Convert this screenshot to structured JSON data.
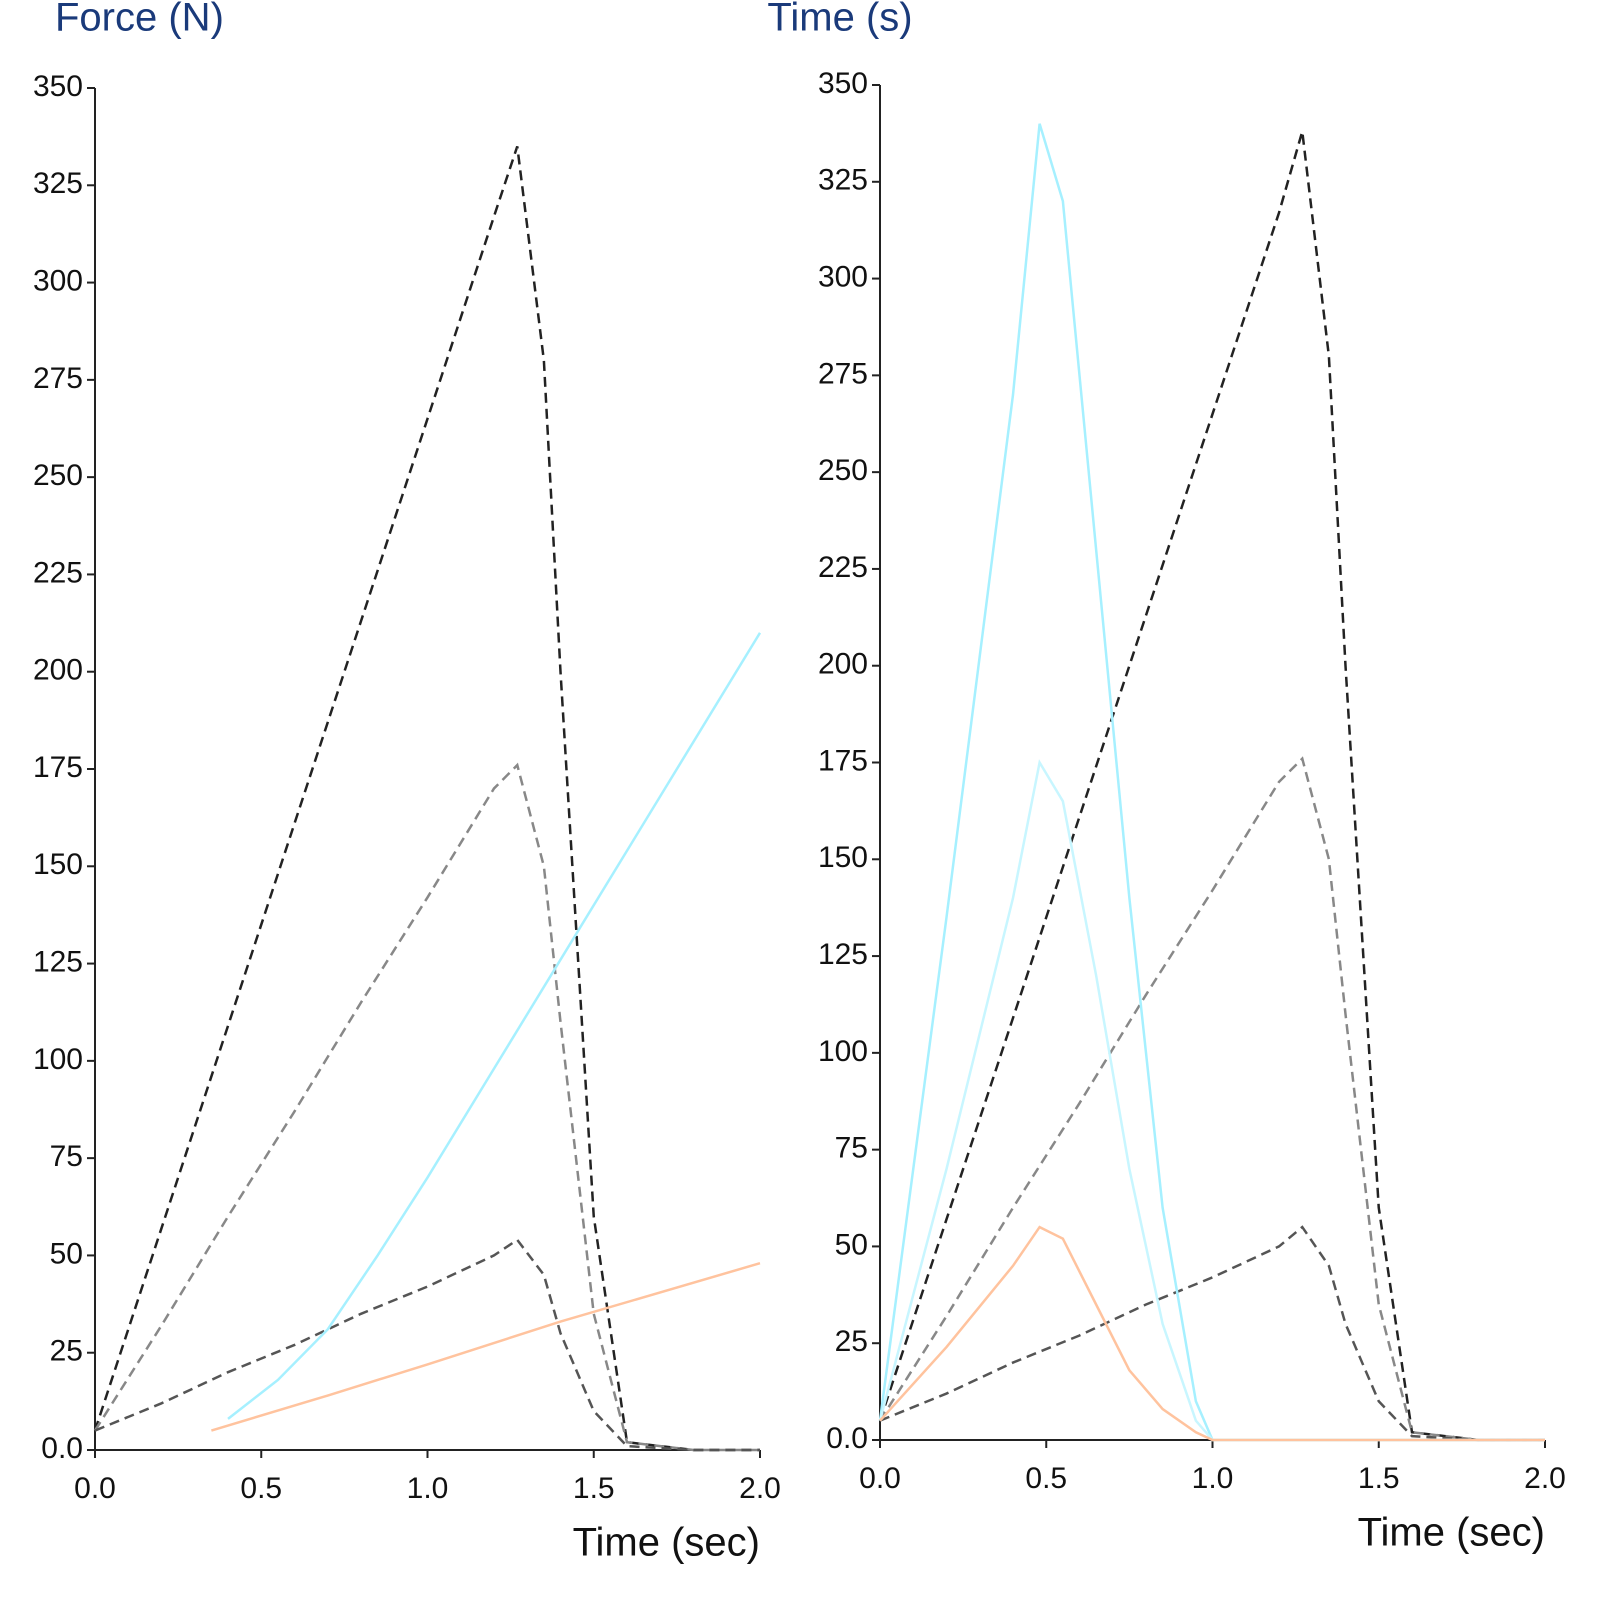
{
  "chart_data": [
    {
      "type": "line",
      "ylabel": "Force (N)",
      "xlabel": "Time (sec)",
      "xlim": [
        0,
        2
      ],
      "xticks": [
        {
          "value": 0,
          "label": "0.0"
        },
        0.5,
        {
          "value": 1,
          "label": "1.0"
        },
        1.5,
        {
          "value": 2,
          "label": "2.0"
        }
      ],
      "ylim": [
        0,
        350
      ],
      "yticks": [
        {
          "value": 0,
          "label": "0.0"
        },
        25,
        50,
        75,
        100,
        125,
        150,
        175,
        200,
        225,
        250,
        275,
        300,
        325,
        350
      ],
      "series": [
        {
          "color": "#222222",
          "dash": true,
          "x": [
            0,
            0.2,
            0.4,
            0.6,
            0.8,
            1.0,
            1.2,
            1.27,
            1.35,
            1.4,
            1.5,
            1.6,
            1.8,
            2.0
          ],
          "values": [
            5,
            57,
            109,
            161,
            213,
            265,
            317,
            335,
            280,
            200,
            60,
            2,
            0,
            0
          ]
        },
        {
          "color": "#888888",
          "dash": true,
          "x": [
            0,
            0.2,
            0.4,
            0.6,
            0.8,
            1.0,
            1.2,
            1.27,
            1.35,
            1.4,
            1.5,
            1.6,
            1.8,
            2.0
          ],
          "values": [
            5,
            32,
            60,
            87,
            115,
            142,
            170,
            176,
            150,
            110,
            35,
            2,
            0,
            0
          ]
        },
        {
          "color": "#555555",
          "dash": true,
          "x": [
            0,
            0.2,
            0.4,
            0.6,
            0.8,
            1.0,
            1.2,
            1.27,
            1.35,
            1.4,
            1.5,
            1.6,
            1.8,
            2.0
          ],
          "values": [
            5,
            12,
            20,
            27,
            35,
            42,
            50,
            54,
            45,
            30,
            10,
            1,
            0,
            0
          ]
        },
        {
          "color": "#a6f0ff",
          "dash": false,
          "x": [
            0.4,
            0.55,
            0.7,
            0.85,
            1.0,
            1.2,
            1.4,
            1.7,
            2.0
          ],
          "values": [
            8,
            18,
            31,
            50,
            70,
            98,
            126,
            168,
            210
          ]
        },
        {
          "color": "#ffc39e",
          "dash": false,
          "x": [
            0.35,
            0.7,
            1.0,
            1.4,
            2.0
          ],
          "values": [
            5,
            14,
            22,
            33,
            48
          ]
        }
      ]
    },
    {
      "type": "line",
      "ylabel": "Time (s)",
      "xlabel": "Time (sec)",
      "xlim": [
        0,
        2
      ],
      "xticks": [
        {
          "value": 0,
          "label": "0.0"
        },
        0.5,
        {
          "value": 1,
          "label": "1.0"
        },
        1.5,
        {
          "value": 2,
          "label": "2.0"
        }
      ],
      "ylim": [
        0,
        350
      ],
      "yticks": [
        {
          "value": 0,
          "label": "0.0"
        },
        25,
        50,
        75,
        100,
        125,
        150,
        175,
        200,
        225,
        250,
        275,
        300,
        325,
        350
      ],
      "series": [
        {
          "color": "#222222",
          "dash": true,
          "x": [
            0,
            0.2,
            0.4,
            0.6,
            0.8,
            1.0,
            1.2,
            1.27,
            1.35,
            1.4,
            1.5,
            1.6,
            1.8,
            2.0
          ],
          "values": [
            5,
            57,
            109,
            161,
            213,
            265,
            317,
            338,
            280,
            200,
            60,
            2,
            0,
            0
          ]
        },
        {
          "color": "#888888",
          "dash": true,
          "x": [
            0,
            0.2,
            0.4,
            0.6,
            0.8,
            1.0,
            1.2,
            1.27,
            1.35,
            1.4,
            1.5,
            1.6,
            1.8,
            2.0
          ],
          "values": [
            5,
            32,
            60,
            87,
            115,
            142,
            170,
            176,
            150,
            110,
            35,
            2,
            0,
            0
          ]
        },
        {
          "color": "#555555",
          "dash": true,
          "x": [
            0,
            0.2,
            0.4,
            0.6,
            0.8,
            1.0,
            1.2,
            1.27,
            1.35,
            1.4,
            1.5,
            1.6,
            1.8,
            2.0
          ],
          "values": [
            5,
            12,
            20,
            27,
            35,
            42,
            50,
            55,
            45,
            30,
            10,
            1,
            0,
            0
          ]
        },
        {
          "color": "#a6f0ff",
          "dash": false,
          "x": [
            0,
            0.2,
            0.4,
            0.48,
            0.55,
            0.65,
            0.75,
            0.85,
            0.95,
            1.0,
            1.2,
            2.0
          ],
          "values": [
            5,
            135,
            270,
            340,
            320,
            230,
            140,
            60,
            10,
            0,
            0,
            0
          ]
        },
        {
          "color": "#c8f6ff",
          "dash": false,
          "x": [
            0,
            0.2,
            0.4,
            0.48,
            0.55,
            0.65,
            0.75,
            0.85,
            0.95,
            1.0,
            1.2,
            2.0
          ],
          "values": [
            5,
            70,
            140,
            175,
            165,
            120,
            70,
            30,
            5,
            0,
            0,
            0
          ]
        },
        {
          "color": "#ffc39e",
          "dash": false,
          "x": [
            0,
            0.2,
            0.4,
            0.48,
            0.55,
            0.65,
            0.75,
            0.85,
            0.95,
            1.0,
            1.2,
            2.0
          ],
          "values": [
            5,
            24,
            45,
            55,
            52,
            35,
            18,
            8,
            2,
            0,
            0,
            0
          ]
        }
      ]
    }
  ]
}
